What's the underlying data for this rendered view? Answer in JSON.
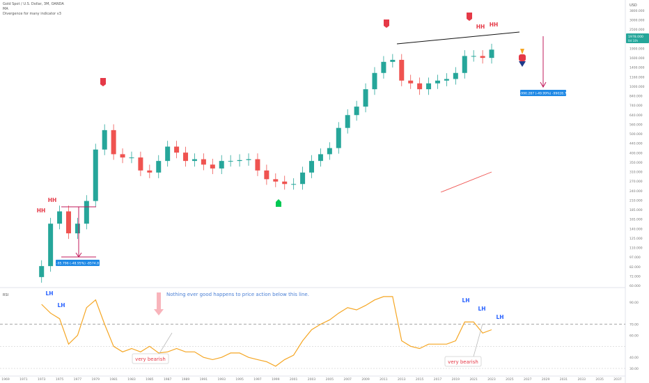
{
  "header": {
    "symbol": "Gold Spot / U.S. Dollar, 3M, OANDA",
    "indicator_1": "MA",
    "indicator_2": "Divergence for many indicator v3"
  },
  "price_axis": {
    "currency": "USD",
    "current_price": "1978.000",
    "current_sub": "0d 10h",
    "labels": [
      "3800.000",
      "3000.000",
      "2500.000",
      "2200.000",
      "1900.000",
      "1600.000",
      "1400.000",
      "1160.000",
      "1000.000",
      "840.000",
      "740.000",
      "640.000",
      "560.000",
      "500.000",
      "440.000",
      "400.000",
      "350.000",
      "310.000",
      "270.000",
      "240.000",
      "210.000",
      "185.000",
      "165.000",
      "140.000",
      "125.000",
      "110.000",
      "97.000",
      "82.000",
      "72.000",
      "60.000"
    ]
  },
  "rsi_axis": {
    "name": "RSI",
    "labels": [
      "90.00",
      "70.00",
      "60.00",
      "40.00",
      "30.00"
    ]
  },
  "time_axis": {
    "labels": [
      "1969",
      "1971",
      "1973",
      "1975",
      "1977",
      "1979",
      "1981",
      "1983",
      "1985",
      "1987",
      "1989",
      "1991",
      "1993",
      "1995",
      "1997",
      "1999",
      "2001",
      "2003",
      "2005",
      "2007",
      "2009",
      "2011",
      "2013",
      "2015",
      "2017",
      "2019",
      "2021",
      "2023",
      "2025",
      "2027",
      "2029",
      "2031",
      "2033",
      "2035",
      "2037"
    ]
  },
  "annotations": {
    "hh": "HH",
    "lh": "LH",
    "very_bearish": "very bearish",
    "note": "Nothing ever good happens to price action below this line.",
    "measure_left": "-95.796 (-48.95%) -8574.8",
    "measure_right": "-990.287 (-49.99%) -99028.7"
  },
  "colors": {
    "up": "#26a69a",
    "down": "#ef5350",
    "rsi": "#f5a623",
    "annotation_red": "#e53947",
    "annotation_blue": "#2962ff",
    "measure": "#c2185b",
    "label_bg": "#1e88e5"
  },
  "chart_data": {
    "type": "candlestick",
    "title": "Gold Spot / U.S. Dollar, 3M, OANDA",
    "x": [
      "1973",
      "1974",
      "1975",
      "1976",
      "1977",
      "1978",
      "1979",
      "1980",
      "1981",
      "1982",
      "1983",
      "1984",
      "1985",
      "1986",
      "1987",
      "1988",
      "1989",
      "1990",
      "1991",
      "1992",
      "1993",
      "1994",
      "1995",
      "1996",
      "1997",
      "1998",
      "1999",
      "2000",
      "2001",
      "2002",
      "2003",
      "2004",
      "2005",
      "2006",
      "2007",
      "2008",
      "2009",
      "2010",
      "2011",
      "2012",
      "2013",
      "2014",
      "2015",
      "2016",
      "2017",
      "2018",
      "2019",
      "2020",
      "2021",
      "2022",
      "2023"
    ],
    "price_usd": [
      80,
      150,
      180,
      130,
      150,
      210,
      450,
      600,
      420,
      400,
      400,
      330,
      320,
      380,
      470,
      430,
      380,
      390,
      360,
      340,
      380,
      380,
      385,
      390,
      330,
      290,
      280,
      270,
      270,
      320,
      380,
      420,
      460,
      620,
      750,
      850,
      1100,
      1400,
      1650,
      1700,
      1250,
      1200,
      1100,
      1200,
      1250,
      1280,
      1400,
      1800,
      1800,
      1750,
      1978
    ],
    "rsi": [
      88,
      80,
      75,
      52,
      60,
      85,
      92,
      70,
      50,
      45,
      48,
      45,
      50,
      44,
      45,
      48,
      45,
      45,
      40,
      38,
      40,
      44,
      44,
      40,
      38,
      36,
      32,
      38,
      42,
      55,
      65,
      70,
      74,
      80,
      85,
      83,
      87,
      92,
      95,
      95,
      55,
      50,
      48,
      52,
      52,
      52,
      55,
      72,
      72,
      62,
      65
    ],
    "price_scale": "log",
    "rsi_levels": [
      30,
      50,
      70
    ],
    "ylim_price": [
      60,
      3800
    ],
    "ylim_rsi": [
      25,
      100
    ]
  }
}
